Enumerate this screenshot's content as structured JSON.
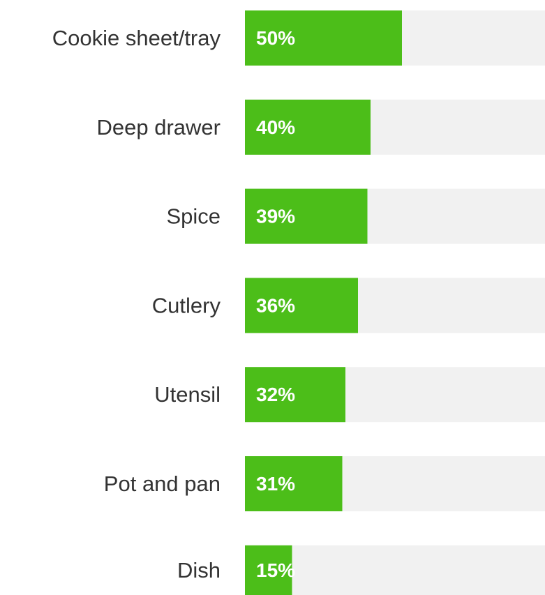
{
  "chart_data": {
    "type": "bar",
    "orientation": "horizontal",
    "categories": [
      "Cookie sheet/tray",
      "Deep drawer",
      "Spice",
      "Cutlery",
      "Utensil",
      "Pot and pan",
      "Dish"
    ],
    "values": [
      50,
      40,
      39,
      36,
      32,
      31,
      15
    ],
    "value_labels": [
      "50%",
      "40%",
      "39%",
      "36%",
      "32%",
      "31%",
      "15%"
    ],
    "unit": "%",
    "xlim": [
      0,
      100
    ],
    "grid": false,
    "legend": "none"
  },
  "colors": {
    "bar": "#4cbe19",
    "track": "#f1f1f1",
    "category_text": "#333333",
    "value_text": "#ffffff"
  }
}
